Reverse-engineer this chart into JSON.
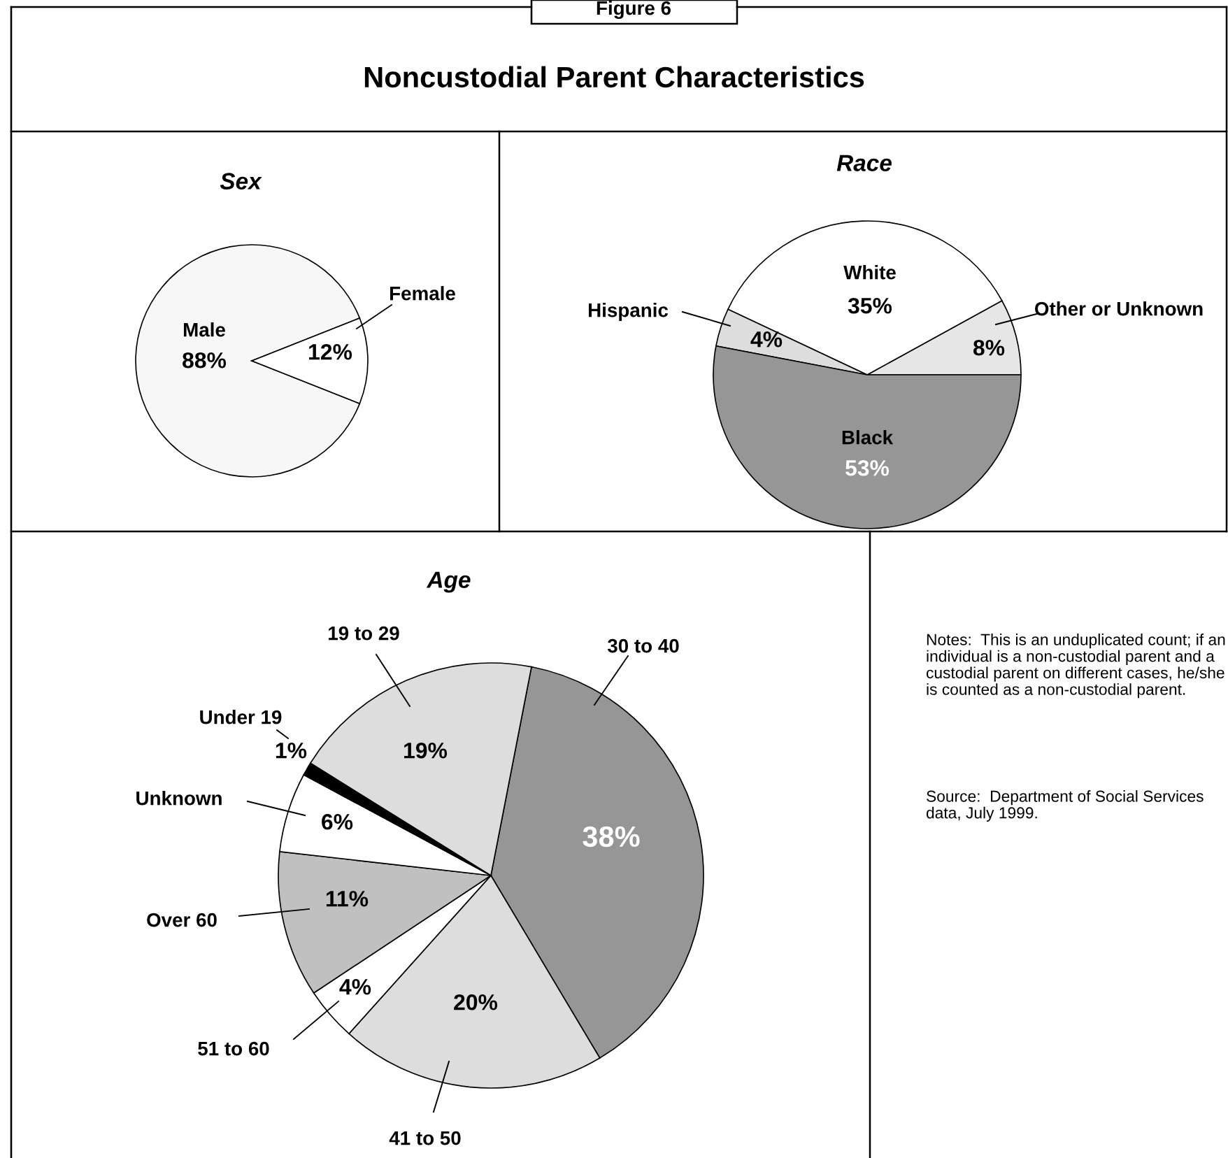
{
  "chart_data": [
    {
      "type": "other",
      "title": "Noncustodial Parent Characteristics",
      "annotations": [
        "Figure 6"
      ]
    },
    {
      "type": "pie",
      "title": "Sex",
      "categories": [
        "Male",
        "Female"
      ],
      "values": [
        88,
        12
      ],
      "colors": [
        "#f7f7f7",
        "#ffffff"
      ],
      "value_labels": [
        "88%",
        "12%"
      ]
    },
    {
      "type": "pie",
      "title": "Race",
      "categories": [
        "Other or Unknown",
        "White",
        "Hispanic",
        "Black"
      ],
      "values": [
        8,
        35,
        4,
        53
      ],
      "colors": [
        "#e6e6e6",
        "#ffffff",
        "#dddddd",
        "#969696"
      ],
      "value_labels": [
        "8%",
        "35%",
        "4%",
        "53%"
      ]
    },
    {
      "type": "pie",
      "title": "Age",
      "categories": [
        "30 to 40",
        "41 to 50",
        "51 to 60",
        "Over 60",
        "Unknown",
        "Under 19",
        "19 to 29"
      ],
      "values": [
        38,
        20,
        4,
        11,
        6,
        1,
        19
      ],
      "colors": [
        "#969696",
        "#dddddd",
        "#ffffff",
        "#c0c0c0",
        "#ffffff",
        "#000000",
        "#dddddd"
      ],
      "value_labels": [
        "38%",
        "20%",
        "4%",
        "11%",
        "6%",
        "1%",
        "19%"
      ]
    },
    {
      "type": "other",
      "annotations": [
        "Notes:  This is an unduplicated count; if an individual is a non-custodial parent and a custodial parent on different cases, he/she is counted as a non-custodial parent.",
        "Source:  Department of Social Services data, July 1999."
      ]
    }
  ]
}
